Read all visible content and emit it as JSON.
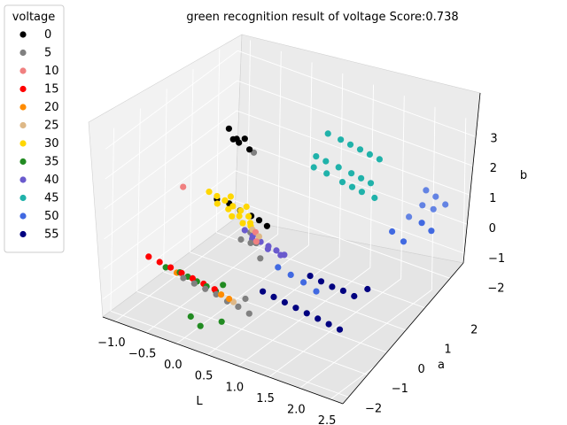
{
  "chart_data": {
    "type": "scatter",
    "projection": "3d",
    "title": "green recognition result of voltage Score:0.738",
    "xlabel": "L",
    "ylabel": "a",
    "zlabel": "b",
    "x_ticks": [
      "−1.0",
      "−0.5",
      "0.0",
      "0.5",
      "1.0",
      "1.5",
      "2.0",
      "2.5"
    ],
    "y_ticks": [
      "−2",
      "−1",
      "0",
      "1",
      "2"
    ],
    "z_ticks": [
      "−2",
      "−1",
      "0",
      "1",
      "2",
      "3"
    ],
    "xlim": [
      -1.2,
      2.7
    ],
    "ylim": [
      -2.3,
      2.7
    ],
    "zlim": [
      -2.6,
      3.5
    ],
    "grid": true,
    "legend": {
      "title": "voltage",
      "placement": "upper-left outside",
      "entries": [
        "0",
        "5",
        "10",
        "15",
        "20",
        "25",
        "30",
        "35",
        "40",
        "45",
        "50",
        "55"
      ]
    },
    "series": [
      {
        "name": "0",
        "color": "#000000",
        "points": [
          [
            -0.5,
            0.75,
            2.2
          ],
          [
            -0.35,
            0.7,
            2.0
          ],
          [
            -0.2,
            0.65,
            2.15
          ],
          [
            -0.1,
            0.6,
            1.9
          ],
          [
            -0.45,
            0.8,
            1.85
          ],
          [
            -0.25,
            0.55,
            2.05
          ],
          [
            -0.4,
            0.1,
            0.35
          ],
          [
            -0.2,
            0.1,
            0.35
          ],
          [
            0.0,
            0.05,
            0.3
          ],
          [
            0.2,
            0.0,
            0.3
          ],
          [
            0.35,
            -0.05,
            0.3
          ],
          [
            0.5,
            -0.1,
            0.25
          ]
        ]
      },
      {
        "name": "5",
        "color": "#808080",
        "points": [
          [
            -0.05,
            0.65,
            1.8
          ],
          [
            0.0,
            0.1,
            -0.7
          ],
          [
            0.2,
            0.0,
            -0.6
          ],
          [
            0.4,
            -0.1,
            -0.9
          ],
          [
            0.15,
            0.1,
            -0.35
          ],
          [
            0.35,
            -0.15,
            -0.4
          ],
          [
            -0.5,
            -0.9,
            -1.7
          ],
          [
            -0.3,
            -0.95,
            -1.7
          ],
          [
            -0.1,
            -1.0,
            -1.7
          ],
          [
            0.1,
            -1.05,
            -1.7
          ],
          [
            0.3,
            -1.1,
            -1.75
          ],
          [
            0.5,
            -1.15,
            -1.75
          ],
          [
            0.7,
            -1.2,
            -1.8
          ],
          [
            0.55,
            -1.0,
            -1.55
          ]
        ]
      },
      {
        "name": "10",
        "color": "#f08080",
        "points": [
          [
            -0.95,
            0.1,
            0.35
          ],
          [
            0.4,
            -0.3,
            0.1
          ],
          [
            0.5,
            -0.5,
            0.0
          ]
        ]
      },
      {
        "name": "15",
        "color": "#ff0000",
        "points": [
          [
            -1.15,
            -0.7,
            -1.6
          ],
          [
            -0.95,
            -0.75,
            -1.6
          ],
          [
            -0.75,
            -0.8,
            -1.6
          ],
          [
            -0.55,
            -0.85,
            -1.6
          ],
          [
            -0.35,
            -0.9,
            -1.6
          ],
          [
            -0.15,
            -0.95,
            -1.6
          ],
          [
            0.05,
            -1.0,
            -1.6
          ]
        ]
      },
      {
        "name": "20",
        "color": "#ff8c00",
        "points": [
          [
            -0.65,
            -0.8,
            -1.7
          ],
          [
            0.2,
            -1.1,
            -1.6
          ],
          [
            0.35,
            -1.15,
            -1.6
          ]
        ]
      },
      {
        "name": "25",
        "color": "#deb887",
        "points": [
          [
            0.35,
            -0.3,
            0.15
          ],
          [
            0.5,
            -0.4,
            0.1
          ],
          [
            0.4,
            -1.1,
            -1.7
          ]
        ]
      },
      {
        "name": "30",
        "color": "#ffd700",
        "points": [
          [
            -0.55,
            0.15,
            0.45
          ],
          [
            -0.4,
            0.1,
            0.45
          ],
          [
            -0.25,
            0.05,
            0.45
          ],
          [
            -0.1,
            0.0,
            0.4
          ],
          [
            0.05,
            -0.05,
            0.4
          ],
          [
            0.2,
            -0.1,
            0.35
          ],
          [
            -0.35,
            0.0,
            0.3
          ],
          [
            -0.15,
            -0.05,
            0.3
          ],
          [
            0.05,
            -0.1,
            0.25
          ],
          [
            0.25,
            -0.15,
            0.2
          ],
          [
            -0.2,
            0.15,
            0.55
          ],
          [
            0.1,
            0.05,
            0.5
          ],
          [
            -0.05,
            -0.15,
            0.2
          ],
          [
            0.15,
            -0.2,
            0.15
          ],
          [
            0.3,
            -0.25,
            0.2
          ]
        ]
      },
      {
        "name": "35",
        "color": "#228b22",
        "points": [
          [
            -0.85,
            -0.75,
            -1.7
          ],
          [
            -0.6,
            -0.8,
            -1.65
          ],
          [
            -0.45,
            -0.85,
            -1.65
          ],
          [
            -0.3,
            -0.85,
            -1.7
          ],
          [
            -0.1,
            -0.95,
            -1.65
          ],
          [
            0.05,
            -0.95,
            -1.7
          ],
          [
            0.1,
            -0.8,
            -1.55
          ],
          [
            -0.2,
            -1.3,
            -2.5
          ],
          [
            0.0,
            -1.4,
            -2.6
          ],
          [
            0.3,
            -1.3,
            -2.3
          ]
        ]
      },
      {
        "name": "40",
        "color": "#6a5acd",
        "points": [
          [
            0.1,
            0.0,
            -0.25
          ],
          [
            0.25,
            -0.05,
            -0.3
          ],
          [
            0.4,
            -0.1,
            -0.35
          ],
          [
            0.55,
            -0.15,
            -0.35
          ],
          [
            0.7,
            -0.2,
            -0.35
          ],
          [
            0.85,
            -0.25,
            -0.35
          ],
          [
            0.2,
            0.05,
            -0.5
          ],
          [
            0.5,
            -0.05,
            -0.55
          ],
          [
            0.75,
            -0.15,
            -0.5
          ]
        ]
      },
      {
        "name": "45",
        "color": "#20b2aa",
        "points": [
          [
            0.7,
            1.7,
            2.3
          ],
          [
            0.95,
            1.6,
            2.35
          ],
          [
            1.15,
            1.5,
            2.4
          ],
          [
            1.35,
            1.4,
            2.45
          ],
          [
            1.55,
            1.3,
            2.5
          ],
          [
            1.75,
            1.2,
            2.55
          ],
          [
            0.6,
            1.5,
            1.6
          ],
          [
            0.8,
            1.4,
            1.65
          ],
          [
            1.05,
            1.3,
            1.7
          ],
          [
            1.3,
            1.2,
            1.75
          ],
          [
            1.5,
            1.1,
            1.8
          ],
          [
            1.7,
            1.0,
            1.85
          ],
          [
            0.65,
            1.3,
            1.4
          ],
          [
            0.9,
            1.2,
            1.45
          ],
          [
            1.4,
            1.0,
            1.5
          ],
          [
            1.6,
            0.9,
            1.55
          ],
          [
            1.85,
            0.8,
            1.6
          ],
          [
            1.2,
            1.1,
            1.45
          ]
        ]
      },
      {
        "name": "50",
        "color": "#4169e1",
        "points": [
          [
            2.3,
            1.7,
            1.6
          ],
          [
            2.5,
            1.6,
            1.6
          ],
          [
            2.7,
            1.5,
            1.55
          ],
          [
            2.35,
            1.45,
            1.3
          ],
          [
            2.55,
            1.4,
            1.35
          ],
          [
            2.2,
            1.3,
            0.9
          ],
          [
            2.45,
            1.2,
            0.95
          ],
          [
            2.65,
            1.1,
            0.9
          ],
          [
            0.9,
            -0.6,
            -0.5
          ],
          [
            1.15,
            -0.7,
            -0.5
          ],
          [
            1.4,
            -0.8,
            -0.5
          ],
          [
            1.65,
            -0.9,
            -0.55
          ],
          [
            2.1,
            0.9,
            0.6
          ],
          [
            2.35,
            0.75,
            0.55
          ]
        ]
      },
      {
        "name": "55",
        "color": "#000080",
        "points": [
          [
            0.85,
            -1.05,
            -1.05
          ],
          [
            1.05,
            -1.1,
            -1.05
          ],
          [
            1.25,
            -1.15,
            -1.05
          ],
          [
            1.45,
            -1.2,
            -1.05
          ],
          [
            1.65,
            -1.25,
            -1.05
          ],
          [
            1.85,
            -1.3,
            -1.05
          ],
          [
            2.05,
            -1.35,
            -1.05
          ],
          [
            2.25,
            -1.4,
            -1.05
          ],
          [
            1.4,
            -0.55,
            -0.45
          ],
          [
            1.6,
            -0.6,
            -0.45
          ],
          [
            1.8,
            -0.65,
            -0.45
          ],
          [
            2.0,
            -0.7,
            -0.4
          ],
          [
            2.2,
            -0.75,
            -0.4
          ],
          [
            2.35,
            -0.6,
            -0.15
          ]
        ]
      }
    ]
  }
}
